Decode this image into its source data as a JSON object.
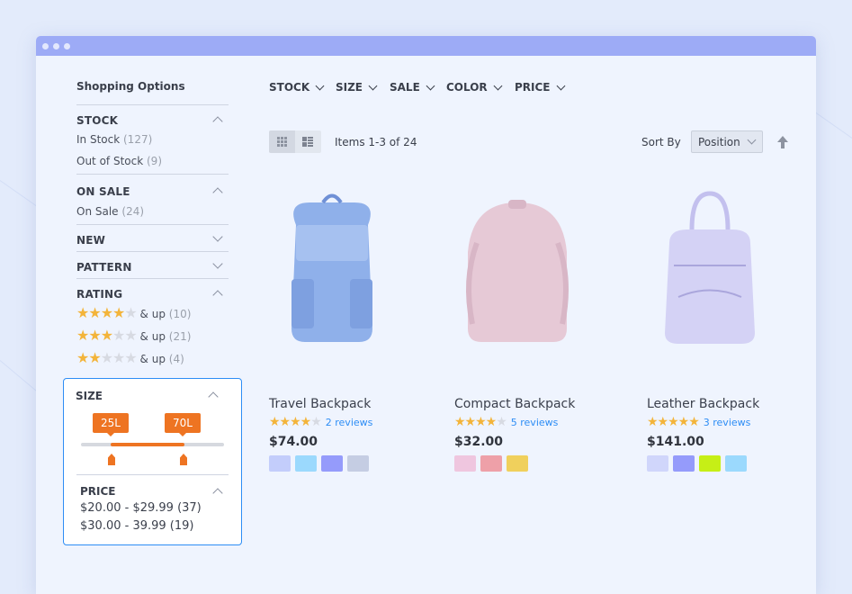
{
  "sidebar": {
    "title": "Shopping Options",
    "stock": {
      "label": "STOCK",
      "options": [
        {
          "label": "In Stock",
          "count": "(127)"
        },
        {
          "label": "Out of Stock",
          "count": "(9)"
        }
      ]
    },
    "on_sale": {
      "label": "ON SALE",
      "options": [
        {
          "label": "On Sale",
          "count": "(24)"
        }
      ]
    },
    "new": {
      "label": "NEW"
    },
    "pattern": {
      "label": "PATTERN"
    },
    "rating": {
      "label": "RATING",
      "options": [
        {
          "stars": 4,
          "label": "& up",
          "count": "(10)"
        },
        {
          "stars": 3,
          "label": "& up",
          "count": "(21)"
        },
        {
          "stars": 2,
          "label": "& up",
          "count": "(4)"
        }
      ]
    },
    "size": {
      "label": "SIZE",
      "min_label": "25L",
      "max_label": "70L"
    },
    "price": {
      "label": "PRICE",
      "options": [
        {
          "label": "$20.00 - $29.99 (37)"
        },
        {
          "label": "$30.00 - 39.99 (19)"
        }
      ]
    }
  },
  "filters": [
    "STOCK",
    "SIZE",
    "SALE",
    "COLOR",
    "PRICE"
  ],
  "toolbar": {
    "items_text": "Items 1-3 of 24",
    "sort_label": "Sort By",
    "sort_value": "Position",
    "view_mode": "grid"
  },
  "products": [
    {
      "name": "Travel Backpack",
      "rating": 4,
      "reviews": "2 reviews",
      "price": "$74.00",
      "colors": [
        "#c3cdfb",
        "#9bd9fd",
        "#959bfb",
        "#c5cde3"
      ],
      "body_color": "#8fb0ea"
    },
    {
      "name": "Compact Backpack",
      "rating": 4,
      "reviews": "5 reviews",
      "price": "$32.00",
      "colors": [
        "#efc6df",
        "#eea0a8",
        "#f0d05c"
      ],
      "body_color": "#e6c9d6"
    },
    {
      "name": "Leather Backpack",
      "rating": 5,
      "reviews": "3 reviews",
      "price": "$141.00",
      "colors": [
        "#d0d6fb",
        "#959bfb",
        "#c6ef16",
        "#9bd9fd"
      ],
      "body_color": "#d4d2f5"
    }
  ],
  "colors": {
    "accent": "#2d8df5",
    "slider": "#ee7422",
    "star": "#f3b43a",
    "titlebar": "#9dabf6"
  }
}
